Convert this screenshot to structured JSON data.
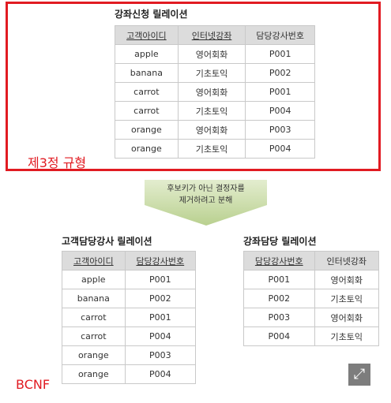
{
  "top": {
    "title": "강좌신청 릴레이션",
    "headers": [
      "고객아이디",
      "인터넷강좌",
      "담당강사번호"
    ],
    "rows": [
      [
        "apple",
        "영어회화",
        "P001"
      ],
      [
        "banana",
        "기초토익",
        "P002"
      ],
      [
        "carrot",
        "영어회화",
        "P001"
      ],
      [
        "carrot",
        "기초토익",
        "P004"
      ],
      [
        "orange",
        "영어회화",
        "P003"
      ],
      [
        "orange",
        "기초토익",
        "P004"
      ]
    ],
    "label": "제3정 규형"
  },
  "arrow": {
    "line1": "후보키가 아닌 결정자를",
    "line2": "제거하려고 분해",
    "color": "#c9dba6"
  },
  "left": {
    "title": "고객담당강사 릴레이션",
    "headers": [
      "고객아이디",
      "담당강사번호"
    ],
    "rows": [
      [
        "apple",
        "P001"
      ],
      [
        "banana",
        "P002"
      ],
      [
        "carrot",
        "P001"
      ],
      [
        "carrot",
        "P004"
      ],
      [
        "orange",
        "P003"
      ],
      [
        "orange",
        "P004"
      ]
    ],
    "label": "BCNF"
  },
  "right": {
    "title": "강좌담당 릴레이션",
    "headers": [
      "담당강사번호",
      "인터넷강좌"
    ],
    "rows": [
      [
        "P001",
        "영어회화"
      ],
      [
        "P002",
        "기초토익"
      ],
      [
        "P003",
        "영어회화"
      ],
      [
        "P004",
        "기초토익"
      ]
    ]
  },
  "colors": {
    "highlight": "#e11b22",
    "header_fill": "#dcdcdc",
    "border": "#c9c9c9"
  },
  "corner_icon": "expand-icon"
}
